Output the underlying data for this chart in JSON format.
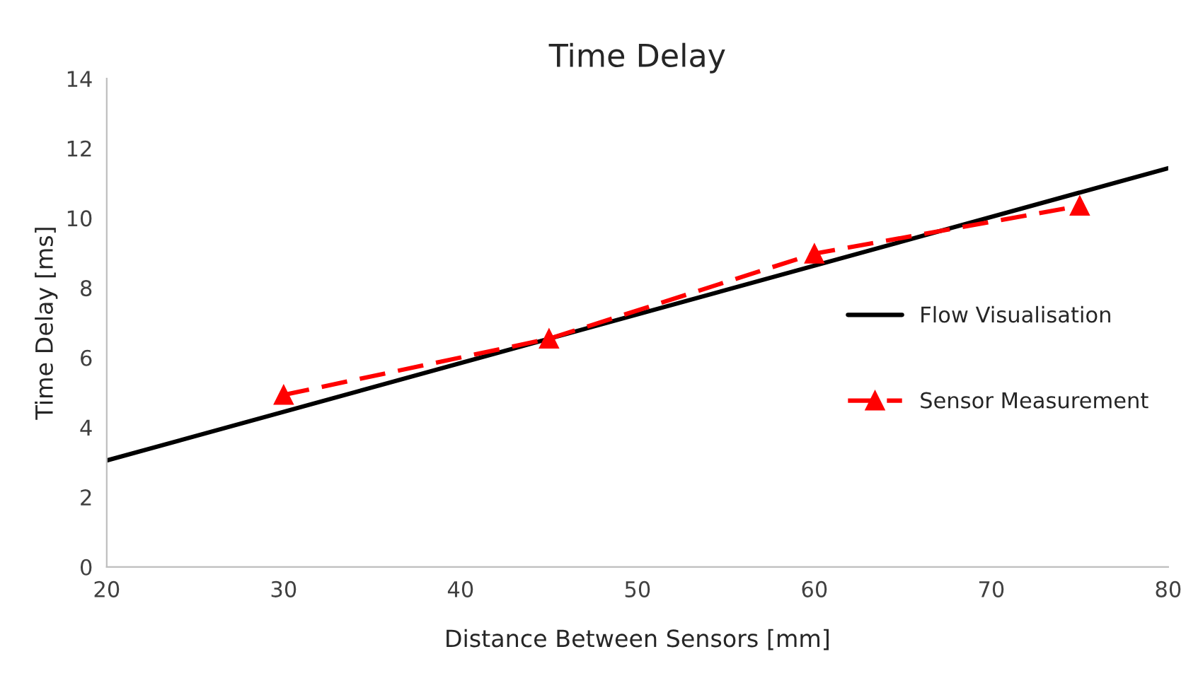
{
  "chart_data": {
    "type": "line",
    "title": "Time Delay",
    "xlabel": "Distance Between Sensors [mm]",
    "ylabel": "Time Delay [ms]",
    "xlim": [
      20,
      80
    ],
    "xticks": [
      20,
      30,
      40,
      50,
      60,
      70,
      80
    ],
    "ylim": [
      0,
      14
    ],
    "yticks": [
      0,
      2,
      4,
      6,
      8,
      10,
      12,
      14
    ],
    "grid": false,
    "legend": "right",
    "series": [
      {
        "name": "Flow Visualisation",
        "color": "#000000",
        "x": [
          20,
          80
        ],
        "values": [
          3.05,
          11.43
        ],
        "marker": "none",
        "line_style": "solid"
      },
      {
        "name": "Sensor Measurement",
        "color": "#ff0000",
        "x": [
          30,
          45,
          60,
          75
        ],
        "values": [
          4.93,
          6.54,
          8.98,
          10.35
        ],
        "marker": "triangle",
        "line_style": "dashed"
      }
    ]
  }
}
